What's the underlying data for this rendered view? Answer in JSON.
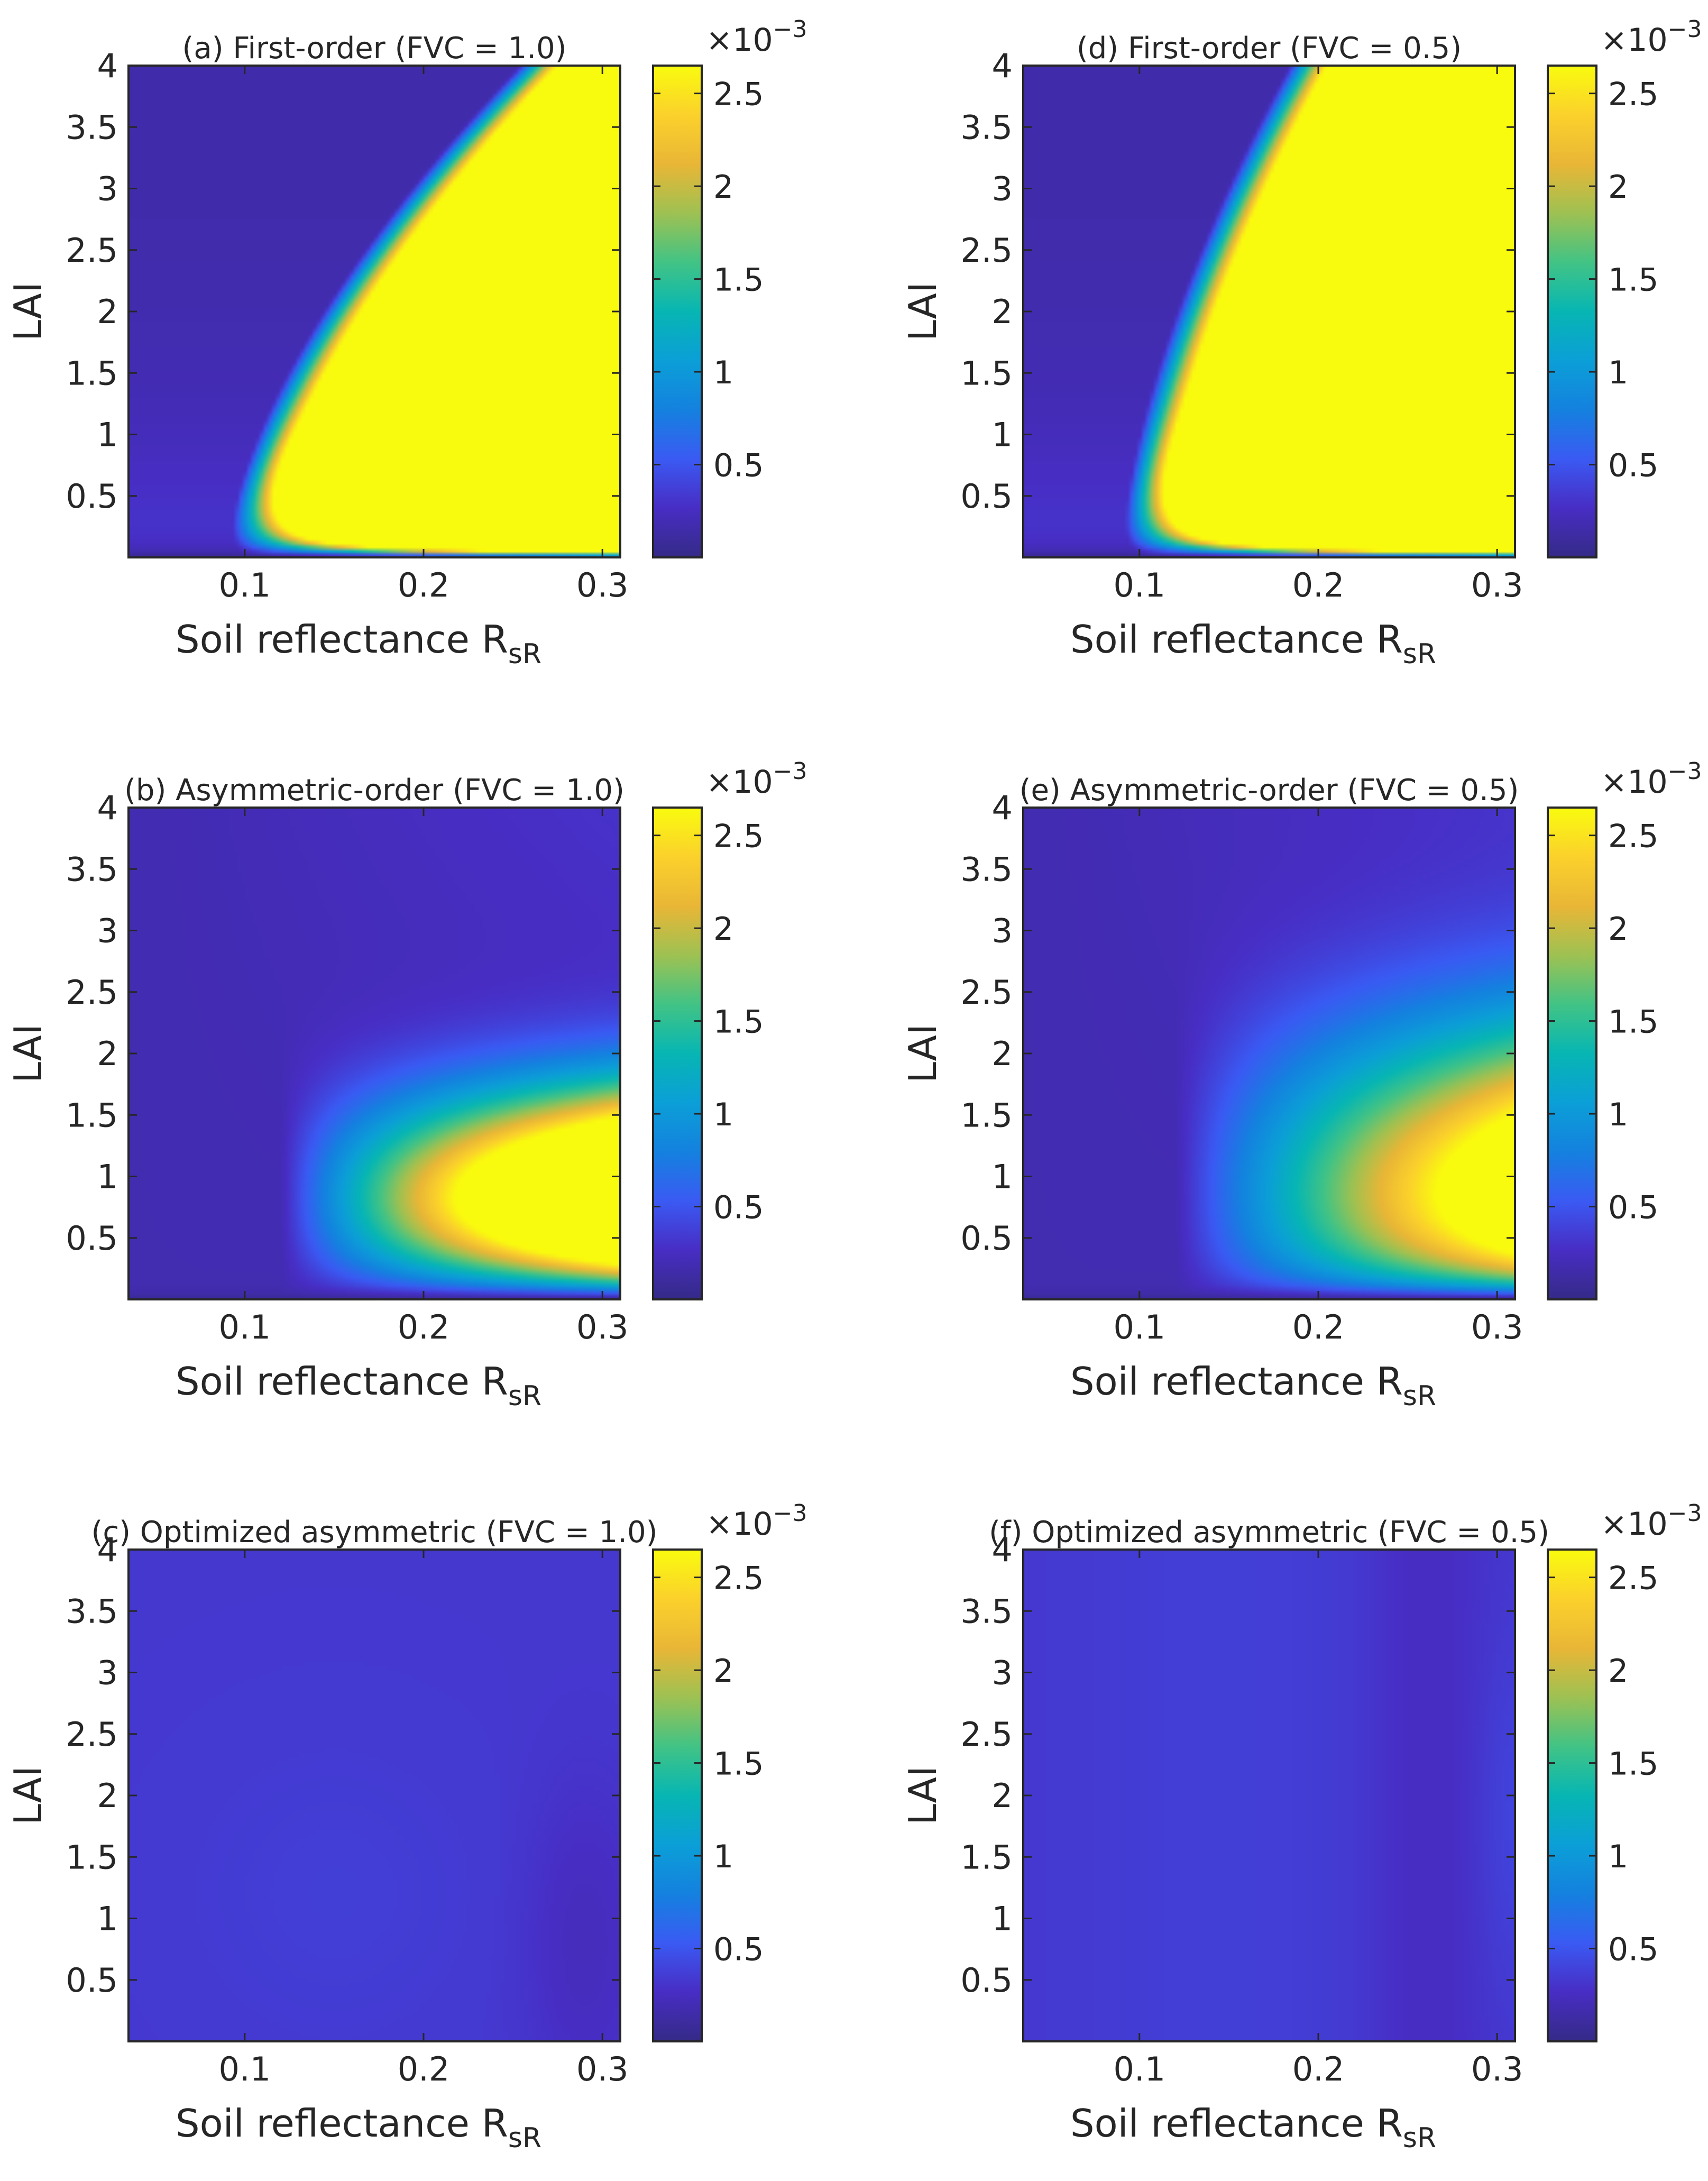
{
  "figure": {
    "colormap": "parula",
    "background": "#ffffff"
  },
  "chart_data": [
    {
      "id": "a",
      "type": "heatmap",
      "title": "(a) First-order (FVC = 1.0)",
      "xlabel_main": "Soil reflectance R",
      "xlabel_sub": "sR",
      "ylabel": "LAI",
      "xlim": [
        0.035,
        0.31
      ],
      "ylim": [
        0.0,
        4.0
      ],
      "xticks": [
        0.1,
        0.2,
        0.3
      ],
      "xtick_labels": [
        "0.1",
        "0.2",
        "0.3"
      ],
      "yticks": [
        0.5,
        1,
        1.5,
        2,
        2.5,
        3,
        3.5,
        4
      ],
      "ytick_labels": [
        "0.5",
        "1",
        "1.5",
        "2",
        "2.5",
        "3",
        "3.5",
        "4"
      ],
      "colorbar": {
        "clim": [
          0.0,
          2.65
        ],
        "ticks": [
          0.5,
          1,
          1.5,
          2,
          2.5
        ],
        "tick_labels": [
          "0.5",
          "1",
          "1.5",
          "2",
          "2.5"
        ],
        "exponent_label": "×10",
        "exponent_power": "−3"
      },
      "field": {
        "pattern": "first-order",
        "scale": 1.0,
        "lai_scale": 0.75
      }
    },
    {
      "id": "d",
      "type": "heatmap",
      "title": "(d) First-order (FVC = 0.5)",
      "xlabel_main": "Soil reflectance R",
      "xlabel_sub": "sR",
      "ylabel": "LAI",
      "xlim": [
        0.035,
        0.31
      ],
      "ylim": [
        0.0,
        4.0
      ],
      "xticks": [
        0.1,
        0.2,
        0.3
      ],
      "xtick_labels": [
        "0.1",
        "0.2",
        "0.3"
      ],
      "yticks": [
        0.5,
        1,
        1.5,
        2,
        2.5,
        3,
        3.5,
        4
      ],
      "ytick_labels": [
        "0.5",
        "1",
        "1.5",
        "2",
        "2.5",
        "3",
        "3.5",
        "4"
      ],
      "colorbar": {
        "clim": [
          0.0,
          2.65
        ],
        "ticks": [
          0.5,
          1,
          1.5,
          2,
          2.5
        ],
        "tick_labels": [
          "0.5",
          "1",
          "1.5",
          "2",
          "2.5"
        ],
        "exponent_label": "×10",
        "exponent_power": "−3"
      },
      "field": {
        "pattern": "first-order",
        "scale": 1.0,
        "lai_scale": 1.9
      }
    },
    {
      "id": "b",
      "type": "heatmap",
      "title": "(b) Asymmetric-order (FVC = 1.0)",
      "xlabel_main": "Soil reflectance R",
      "xlabel_sub": "sR",
      "ylabel": "LAI",
      "xlim": [
        0.035,
        0.31
      ],
      "ylim": [
        0.0,
        4.0
      ],
      "xticks": [
        0.1,
        0.2,
        0.3
      ],
      "xtick_labels": [
        "0.1",
        "0.2",
        "0.3"
      ],
      "yticks": [
        0.5,
        1,
        1.5,
        2,
        2.5,
        3,
        3.5,
        4
      ],
      "ytick_labels": [
        "0.5",
        "1",
        "1.5",
        "2",
        "2.5",
        "3",
        "3.5",
        "4"
      ],
      "colorbar": {
        "clim": [
          0.0,
          2.65
        ],
        "ticks": [
          0.5,
          1,
          1.5,
          2,
          2.5
        ],
        "tick_labels": [
          "0.5",
          "1",
          "1.5",
          "2",
          "2.5"
        ],
        "exponent_label": "×10",
        "exponent_power": "−3"
      },
      "field": {
        "pattern": "asymmetric",
        "scale": 0.255,
        "lai_scale": 0.75
      }
    },
    {
      "id": "e",
      "type": "heatmap",
      "title": "(e) Asymmetric-order (FVC = 0.5)",
      "xlabel_main": "Soil reflectance R",
      "xlabel_sub": "sR",
      "ylabel": "LAI",
      "xlim": [
        0.035,
        0.31
      ],
      "ylim": [
        0.0,
        4.0
      ],
      "xticks": [
        0.1,
        0.2,
        0.3
      ],
      "xtick_labels": [
        "0.1",
        "0.2",
        "0.3"
      ],
      "yticks": [
        0.5,
        1,
        1.5,
        2,
        2.5,
        3,
        3.5,
        4
      ],
      "ytick_labels": [
        "0.5",
        "1",
        "1.5",
        "2",
        "2.5",
        "3",
        "3.5",
        "4"
      ],
      "colorbar": {
        "clim": [
          0.0,
          2.65
        ],
        "ticks": [
          0.5,
          1,
          1.5,
          2,
          2.5
        ],
        "tick_labels": [
          "0.5",
          "1",
          "1.5",
          "2",
          "2.5"
        ],
        "exponent_label": "×10",
        "exponent_power": "−3"
      },
      "field": {
        "pattern": "asymmetric",
        "scale": 0.17,
        "lai_scale": 1.2
      }
    },
    {
      "id": "c",
      "type": "heatmap",
      "title": "(c) Optimized asymmetric (FVC = 1.0)",
      "xlabel_main": "Soil reflectance R",
      "xlabel_sub": "sR",
      "ylabel": "LAI",
      "xlim": [
        0.035,
        0.31
      ],
      "ylim": [
        0.0,
        4.0
      ],
      "xticks": [
        0.1,
        0.2,
        0.3
      ],
      "xtick_labels": [
        "0.1",
        "0.2",
        "0.3"
      ],
      "yticks": [
        0.5,
        1,
        1.5,
        2,
        2.5,
        3,
        3.5,
        4
      ],
      "ytick_labels": [
        "0.5",
        "1",
        "1.5",
        "2",
        "2.5",
        "3",
        "3.5",
        "4"
      ],
      "colorbar": {
        "clim": [
          0.0,
          2.65
        ],
        "ticks": [
          0.5,
          1,
          1.5,
          2,
          2.5
        ],
        "tick_labels": [
          "0.5",
          "1",
          "1.5",
          "2",
          "2.5"
        ],
        "exponent_label": "×10",
        "exponent_power": "−3"
      },
      "field": {
        "pattern": "optimized-1",
        "scale": 1.0,
        "lai_scale": 1.0
      }
    },
    {
      "id": "f",
      "type": "heatmap",
      "title": "(f) Optimized asymmetric (FVC = 0.5)",
      "xlabel_main": "Soil reflectance R",
      "xlabel_sub": "sR",
      "ylabel": "LAI",
      "xlim": [
        0.035,
        0.31
      ],
      "ylim": [
        0.0,
        4.0
      ],
      "xticks": [
        0.1,
        0.2,
        0.3
      ],
      "xtick_labels": [
        "0.1",
        "0.2",
        "0.3"
      ],
      "yticks": [
        0.5,
        1,
        1.5,
        2,
        2.5,
        3,
        3.5,
        4
      ],
      "ytick_labels": [
        "0.5",
        "1",
        "1.5",
        "2",
        "2.5",
        "3",
        "3.5",
        "4"
      ],
      "colorbar": {
        "clim": [
          0.0,
          2.65
        ],
        "ticks": [
          0.5,
          1,
          1.5,
          2,
          2.5
        ],
        "tick_labels": [
          "0.5",
          "1",
          "1.5",
          "2",
          "2.5"
        ],
        "exponent_label": "×10",
        "exponent_power": "−3"
      },
      "field": {
        "pattern": "optimized-05",
        "scale": 1.0,
        "lai_scale": 1.0
      }
    }
  ]
}
